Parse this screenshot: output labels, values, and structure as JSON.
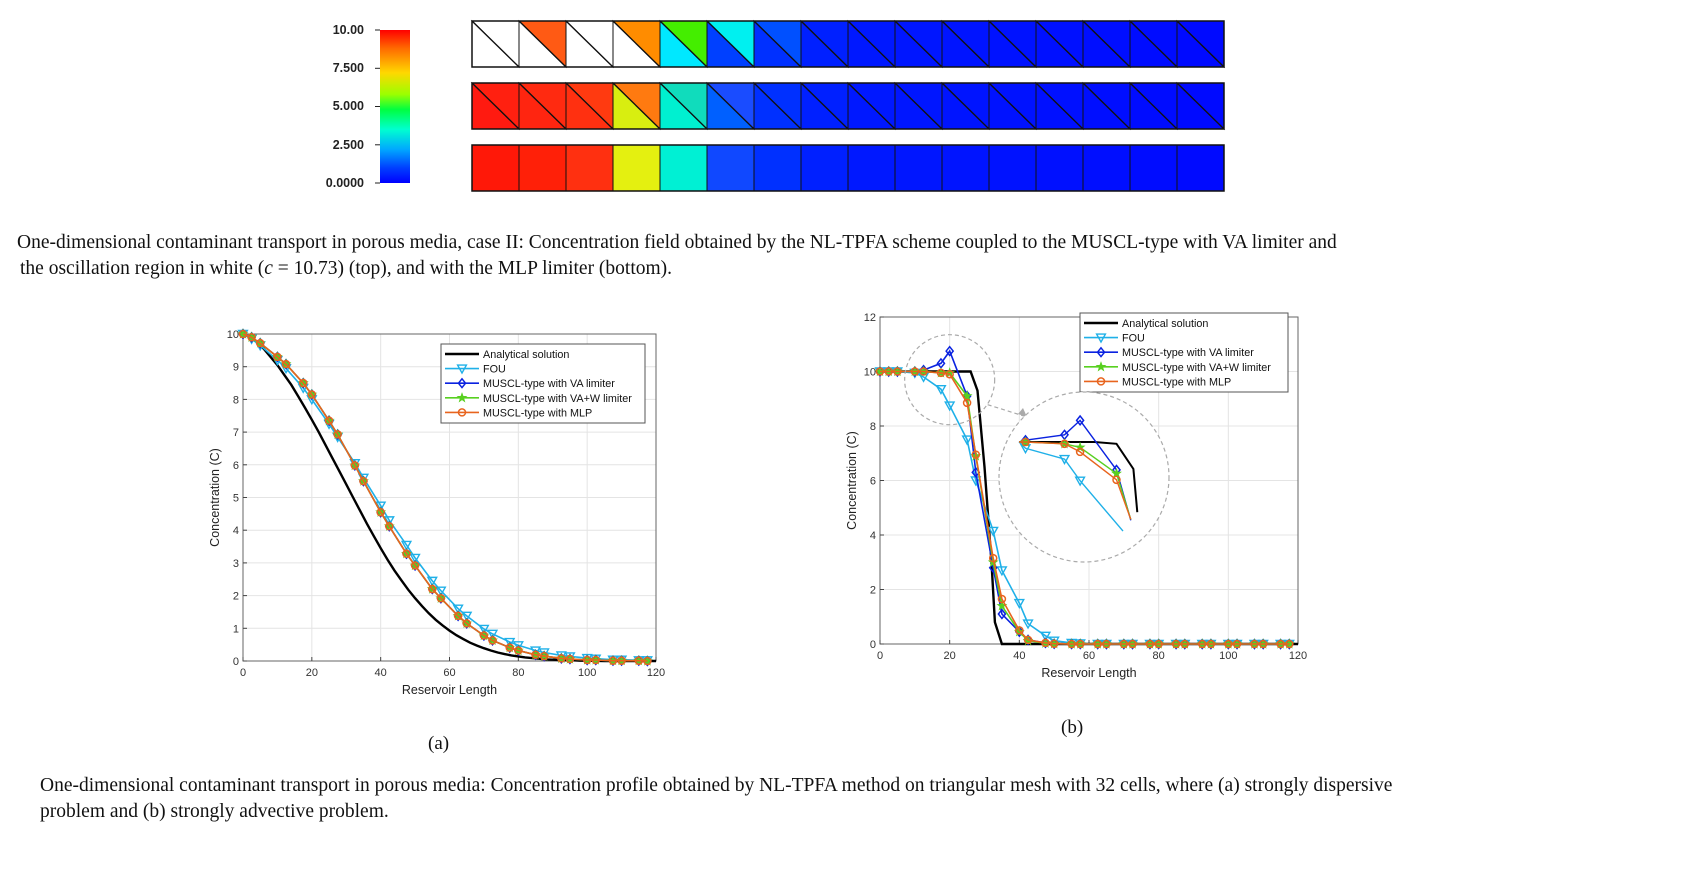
{
  "colorbar": {
    "ticks": [
      "10.00",
      "7.500",
      "5.000",
      "2.500",
      "0.0000"
    ],
    "tick_values": [
      10,
      7.5,
      5,
      2.5,
      0
    ]
  },
  "strips": {
    "cells_per_row": 16,
    "rows": [
      {
        "name": "VA limiter (top)",
        "triangles": true,
        "upper": [
          "#ffffff",
          "#ff5a14",
          "#ffffff",
          "#ff8c00",
          "#44ee00",
          "#00f0f0",
          "#0050ff",
          "#0020ff",
          "#0018ff",
          "#0016ff",
          "#0014ff",
          "#0012ff",
          "#0010ff",
          "#000eff",
          "#000cff",
          "#000aff"
        ],
        "lower": [
          "#ffffff",
          "#ffffff",
          "#ffffff",
          "#ffffff",
          "#00e8ff",
          "#0040ff",
          "#0030ff",
          "#0020ff",
          "#0018ff",
          "#0016ff",
          "#0014ff",
          "#0012ff",
          "#0010ff",
          "#000eff",
          "#000cff",
          "#000aff"
        ]
      },
      {
        "name": "VA limiter (middle)",
        "triangles": true,
        "upper": [
          "#ff2010",
          "#ff2a10",
          "#ff3a10",
          "#ff7a10",
          "#10dcbc",
          "#1a4cff",
          "#0030ff",
          "#0020ff",
          "#0018ff",
          "#0016ff",
          "#0014ff",
          "#0012ff",
          "#0010ff",
          "#000eff",
          "#000cff",
          "#000aff"
        ],
        "lower": [
          "#ff1a10",
          "#ff2510",
          "#ff3010",
          "#d8ee10",
          "#00f0d0",
          "#0060ff",
          "#0030ff",
          "#0020ff",
          "#0018ff",
          "#0016ff",
          "#0014ff",
          "#0012ff",
          "#0010ff",
          "#000eff",
          "#000cff",
          "#000aff"
        ]
      },
      {
        "name": "MLP limiter (bottom)",
        "triangles": false,
        "upper": [
          "#ff1808",
          "#ff2008",
          "#ff3010",
          "#e4f010",
          "#00f0d4",
          "#1048ff",
          "#0030ff",
          "#0020ff",
          "#0018ff",
          "#0016ff",
          "#0014ff",
          "#0012ff",
          "#0010ff",
          "#000eff",
          "#000cff",
          "#000aff"
        ]
      }
    ]
  },
  "caption1": {
    "line1": "One-dimensional contaminant transport in porous media, case II: Concentration field obtained by the NL-TPFA scheme coupled to the MUSCL-type with VA limiter and",
    "line2_a": "the oscillation region in white (",
    "line2_c": "c",
    "line2_b": " = 10.73) (top), and with the MLP limiter (bottom)."
  },
  "chart_data": [
    {
      "type": "line",
      "title": "",
      "xlabel": "Reservoir Length",
      "ylabel": "Concentration (C)",
      "xlim": [
        0,
        120
      ],
      "ylim": [
        0,
        10
      ],
      "xticks": [
        0,
        20,
        40,
        60,
        80,
        100,
        120
      ],
      "yticks": [
        0,
        1,
        2,
        3,
        4,
        5,
        6,
        7,
        8,
        9,
        10
      ],
      "grid": true,
      "legend_position": "top-right",
      "series": [
        {
          "name": "Analytical solution",
          "color": "#000000",
          "marker": "none",
          "x": [
            0,
            2,
            4,
            6,
            8,
            10,
            12,
            14,
            16,
            18,
            20,
            22,
            24,
            26,
            28,
            30,
            32,
            34,
            36,
            38,
            40,
            42,
            44,
            46,
            48,
            50,
            52,
            54,
            56,
            58,
            60,
            62,
            64,
            66,
            68,
            70,
            72,
            74,
            76,
            78,
            80,
            82,
            84,
            86,
            88,
            90,
            92,
            94,
            96,
            98,
            100,
            105,
            110,
            115,
            120
          ],
          "y": [
            10,
            9.9,
            9.75,
            9.55,
            9.3,
            9.05,
            8.75,
            8.45,
            8.1,
            7.75,
            7.38,
            7.0,
            6.6,
            6.2,
            5.8,
            5.4,
            5.0,
            4.6,
            4.2,
            3.82,
            3.45,
            3.1,
            2.77,
            2.47,
            2.18,
            1.92,
            1.68,
            1.46,
            1.26,
            1.09,
            0.93,
            0.79,
            0.67,
            0.56,
            0.47,
            0.39,
            0.32,
            0.26,
            0.21,
            0.17,
            0.14,
            0.11,
            0.09,
            0.07,
            0.05,
            0.04,
            0.03,
            0.02,
            0.02,
            0.01,
            0.01,
            0,
            0,
            0,
            0
          ]
        },
        {
          "name": "FOU",
          "color": "#1fb0e8",
          "marker": "triangle-down",
          "x": [
            0,
            2.5,
            5,
            10,
            12.5,
            17.5,
            20,
            25,
            27.5,
            32.5,
            35,
            40,
            42.5,
            47.5,
            50,
            55,
            57.5,
            62.5,
            65,
            70,
            72.5,
            77.5,
            80,
            85,
            87.5,
            92.5,
            95,
            100,
            102.5,
            107.5,
            110,
            115,
            117.5
          ],
          "y": [
            10,
            9.85,
            9.65,
            9.2,
            8.95,
            8.35,
            8.0,
            7.25,
            6.85,
            6.05,
            5.6,
            4.75,
            4.3,
            3.55,
            3.15,
            2.45,
            2.15,
            1.6,
            1.38,
            0.98,
            0.83,
            0.58,
            0.48,
            0.32,
            0.26,
            0.17,
            0.14,
            0.09,
            0.07,
            0.04,
            0.04,
            0.02,
            0.02
          ]
        },
        {
          "name": "MUSCL-type with VA limiter",
          "color": "#0a22e0",
          "marker": "diamond",
          "x": [
            0,
            2.5,
            5,
            10,
            12.5,
            17.5,
            20,
            25,
            27.5,
            32.5,
            35,
            40,
            42.5,
            47.5,
            50,
            55,
            57.5,
            62.5,
            65,
            70,
            72.5,
            77.5,
            80,
            85,
            87.5,
            92.5,
            95,
            100,
            102.5,
            107.5,
            110,
            115,
            117.5
          ],
          "y": [
            10,
            9.9,
            9.72,
            9.3,
            9.08,
            8.5,
            8.15,
            7.35,
            6.93,
            5.98,
            5.5,
            4.55,
            4.12,
            3.28,
            2.92,
            2.2,
            1.92,
            1.38,
            1.15,
            0.78,
            0.63,
            0.41,
            0.32,
            0.19,
            0.15,
            0.08,
            0.06,
            0.03,
            0.03,
            0.01,
            0.01,
            0.01,
            0
          ]
        },
        {
          "name": "MUSCL-type with VA+W limiter",
          "color": "#58d020",
          "marker": "star",
          "x": [
            0,
            2.5,
            5,
            10,
            12.5,
            17.5,
            20,
            25,
            27.5,
            32.5,
            35,
            40,
            42.5,
            47.5,
            50,
            55,
            57.5,
            62.5,
            65,
            70,
            72.5,
            77.5,
            80,
            85,
            87.5,
            92.5,
            95,
            100,
            102.5,
            107.5,
            110,
            115,
            117.5
          ],
          "y": [
            10,
            9.9,
            9.72,
            9.3,
            9.08,
            8.5,
            8.15,
            7.35,
            6.93,
            5.98,
            5.5,
            4.55,
            4.12,
            3.28,
            2.92,
            2.2,
            1.92,
            1.38,
            1.15,
            0.78,
            0.63,
            0.41,
            0.32,
            0.19,
            0.15,
            0.08,
            0.06,
            0.03,
            0.03,
            0.01,
            0.01,
            0.01,
            0
          ]
        },
        {
          "name": "MUSCL-type with MLP",
          "color": "#e8641e",
          "marker": "circle",
          "x": [
            0,
            2.5,
            5,
            10,
            12.5,
            17.5,
            20,
            25,
            27.5,
            32.5,
            35,
            40,
            42.5,
            47.5,
            50,
            55,
            57.5,
            62.5,
            65,
            70,
            72.5,
            77.5,
            80,
            85,
            87.5,
            92.5,
            95,
            100,
            102.5,
            107.5,
            110,
            115,
            117.5
          ],
          "y": [
            10,
            9.9,
            9.72,
            9.3,
            9.08,
            8.5,
            8.15,
            7.35,
            6.93,
            5.98,
            5.5,
            4.55,
            4.12,
            3.28,
            2.92,
            2.2,
            1.92,
            1.38,
            1.15,
            0.78,
            0.63,
            0.41,
            0.32,
            0.19,
            0.15,
            0.08,
            0.06,
            0.03,
            0.03,
            0.01,
            0.01,
            0.01,
            0
          ]
        }
      ]
    },
    {
      "type": "line",
      "title": "",
      "xlabel": "Reservoir Length",
      "ylabel": "Concentration (C)",
      "xlim": [
        0,
        120
      ],
      "ylim": [
        0,
        12
      ],
      "xticks": [
        0,
        20,
        40,
        60,
        80,
        100,
        120
      ],
      "yticks": [
        0,
        2,
        4,
        6,
        8,
        10,
        12
      ],
      "grid": true,
      "legend_position": "top-right",
      "series": [
        {
          "name": "Analytical solution",
          "color": "#000000",
          "marker": "none",
          "x": [
            0,
            20,
            26,
            28,
            30,
            32,
            33,
            35,
            40,
            60,
            80,
            100,
            120
          ],
          "y": [
            10,
            10,
            10,
            9.3,
            6.5,
            3,
            0.8,
            0,
            0,
            0,
            0,
            0,
            0
          ]
        },
        {
          "name": "FOU",
          "color": "#1fb0e8",
          "marker": "triangle-down",
          "x": [
            0,
            2.5,
            5,
            10,
            12.5,
            17.5,
            20,
            25,
            27.5,
            32.5,
            35,
            40,
            42.5,
            47.5,
            50,
            55,
            57.5,
            62.5,
            65,
            70,
            72.5,
            77.5,
            80,
            85,
            87.5,
            92.5,
            95,
            100,
            102.5,
            107.5,
            110,
            115,
            117.5
          ],
          "y": [
            10,
            10,
            10,
            9.95,
            9.8,
            9.35,
            8.75,
            7.5,
            6.0,
            4.15,
            2.7,
            1.5,
            0.75,
            0.3,
            0.12,
            0.04,
            0.02,
            0,
            0,
            0,
            0,
            0,
            0,
            0,
            0,
            0,
            0,
            0,
            0,
            0,
            0,
            0,
            0
          ]
        },
        {
          "name": "MUSCL-type with VA limiter",
          "color": "#0a22e0",
          "marker": "diamond",
          "x": [
            0,
            2.5,
            5,
            10,
            12.5,
            17.5,
            20,
            25,
            27.5,
            32.5,
            35,
            40,
            42.5,
            47.5,
            50,
            55,
            57.5,
            62.5,
            65,
            70,
            72.5,
            77.5,
            80,
            85,
            87.5,
            92.5,
            95,
            100,
            102.5,
            107.5,
            110,
            115,
            117.5
          ],
          "y": [
            10,
            10,
            10,
            10,
            10.05,
            10.3,
            10.75,
            9.1,
            6.3,
            2.8,
            1.1,
            0.45,
            0.15,
            0.04,
            0.01,
            0,
            0,
            0,
            0,
            0,
            0,
            0,
            0,
            0,
            0,
            0,
            0,
            0,
            0,
            0,
            0,
            0,
            0
          ]
        },
        {
          "name": "MUSCL-type with VA+W limiter",
          "color": "#58d020",
          "marker": "star",
          "x": [
            0,
            2.5,
            5,
            10,
            12.5,
            17.5,
            20,
            25,
            27.5,
            32.5,
            35,
            40,
            42.5,
            47.5,
            50,
            55,
            57.5,
            62.5,
            65,
            70,
            72.5,
            77.5,
            80,
            85,
            87.5,
            92.5,
            95,
            100,
            102.5,
            107.5,
            110,
            115,
            117.5
          ],
          "y": [
            10,
            10,
            10,
            10,
            10,
            9.95,
            9.95,
            9.1,
            6.9,
            3.0,
            1.4,
            0.45,
            0.12,
            0.03,
            0.01,
            0,
            0,
            0,
            0,
            0,
            0,
            0,
            0,
            0,
            0,
            0,
            0,
            0,
            0,
            0,
            0,
            0,
            0
          ]
        },
        {
          "name": "MUSCL-type with MLP",
          "color": "#e8641e",
          "marker": "circle",
          "x": [
            0,
            2.5,
            5,
            10,
            12.5,
            17.5,
            20,
            25,
            27.5,
            32.5,
            35,
            40,
            42.5,
            47.5,
            50,
            55,
            57.5,
            62.5,
            65,
            70,
            72.5,
            77.5,
            80,
            85,
            87.5,
            92.5,
            95,
            100,
            102.5,
            107.5,
            110,
            115,
            117.5
          ],
          "y": [
            10,
            10,
            10,
            10,
            10,
            9.95,
            9.9,
            8.85,
            6.95,
            3.15,
            1.65,
            0.5,
            0.15,
            0.04,
            0.01,
            0,
            0,
            0,
            0,
            0,
            0,
            0,
            0,
            0,
            0,
            0,
            0,
            0,
            0,
            0,
            0,
            0,
            0
          ]
        }
      ]
    }
  ],
  "inset": {
    "zoom_source": {
      "x": 20,
      "y": 9.7
    },
    "series": [
      {
        "name": "Analytical solution",
        "color": "#000000",
        "points": [
          [
            0,
            0
          ],
          [
            0.2,
            0
          ],
          [
            0.42,
            0
          ],
          [
            0.58,
            0
          ],
          [
            0.75,
            0.02
          ],
          [
            0.88,
            0.3
          ],
          [
            0.91,
            0.78
          ]
        ]
      },
      {
        "name": "FOU",
        "color": "#1fb0e8",
        "points": [
          [
            0,
            0
          ],
          [
            0.05,
            0.07
          ],
          [
            0.35,
            0.19
          ],
          [
            0.47,
            0.43
          ],
          [
            0.8,
            0.99
          ]
        ]
      },
      {
        "name": "MUSCL-type with VA limiter",
        "color": "#0a22e0",
        "points": [
          [
            0,
            0
          ],
          [
            0.05,
            -0.02
          ],
          [
            0.35,
            -0.08
          ],
          [
            0.47,
            -0.24
          ],
          [
            0.75,
            0.31
          ],
          [
            0.86,
            0.87
          ]
        ]
      },
      {
        "name": "MUSCL-type with VA+W limiter",
        "color": "#58d020",
        "points": [
          [
            0,
            0
          ],
          [
            0.05,
            0
          ],
          [
            0.35,
            0.02
          ],
          [
            0.47,
            0.06
          ],
          [
            0.75,
            0.35
          ],
          [
            0.86,
            0.86
          ]
        ]
      },
      {
        "name": "MUSCL-type with MLP",
        "color": "#e8641e",
        "points": [
          [
            0,
            0
          ],
          [
            0.05,
            0
          ],
          [
            0.35,
            0.02
          ],
          [
            0.47,
            0.11
          ],
          [
            0.75,
            0.42
          ],
          [
            0.86,
            0.86
          ]
        ]
      }
    ]
  },
  "sublabels": {
    "a": "(a)",
    "b": "(b)"
  },
  "caption2": {
    "line1": "One-dimensional contaminant transport in porous media: Concentration profile obtained by NL-TPFA method on triangular mesh with 32 cells, where (a) strongly dispersive",
    "line2": "problem and (b) strongly advective problem."
  }
}
